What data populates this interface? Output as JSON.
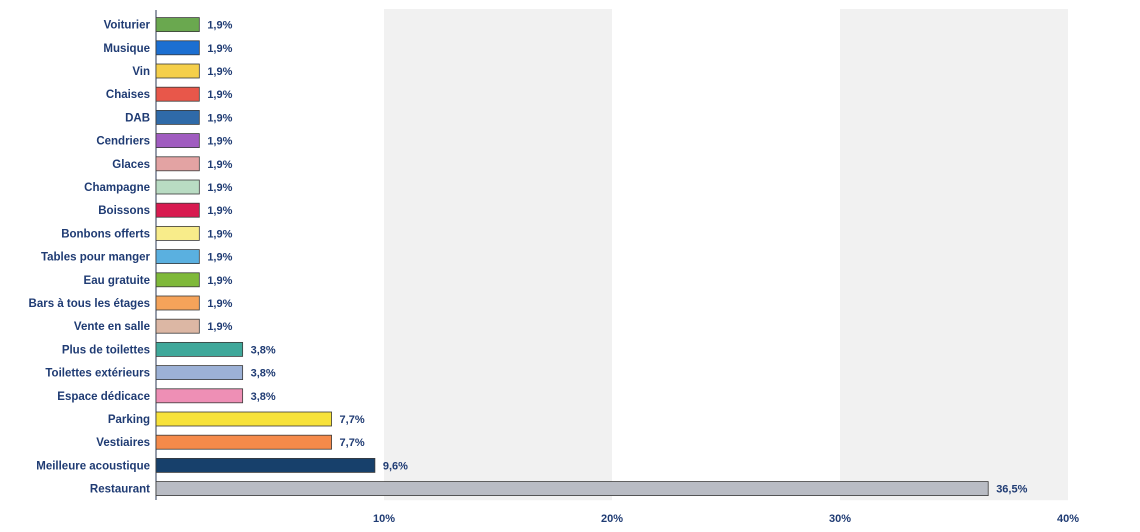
{
  "chart_data": {
    "type": "bar",
    "orientation": "horizontal",
    "categories": [
      "Voiturier",
      "Musique",
      "Vin",
      "Chaises",
      "DAB",
      "Cendriers",
      "Glaces",
      "Champagne",
      "Boissons",
      "Bonbons offerts",
      "Tables pour manger",
      "Eau gratuite",
      "Bars à tous les étages",
      "Vente en salle",
      "Plus de toilettes",
      "Toilettes extérieurs",
      "Espace dédicace",
      "Parking",
      "Vestiaires",
      "Meilleure acoustique",
      "Restaurant"
    ],
    "values": [
      1.9,
      1.9,
      1.9,
      1.9,
      1.9,
      1.9,
      1.9,
      1.9,
      1.9,
      1.9,
      1.9,
      1.9,
      1.9,
      1.9,
      3.8,
      3.8,
      3.8,
      7.7,
      7.7,
      9.6,
      36.5
    ],
    "value_labels": [
      "1,9%",
      "1,9%",
      "1,9%",
      "1,9%",
      "1,9%",
      "1,9%",
      "1,9%",
      "1,9%",
      "1,9%",
      "1,9%",
      "1,9%",
      "1,9%",
      "1,9%",
      "1,9%",
      "3,8%",
      "3,8%",
      "3,8%",
      "7,7%",
      "7,7%",
      "9,6%",
      "36,5%"
    ],
    "colors": [
      "#6aa84f",
      "#1c6fd1",
      "#f5cf4a",
      "#e8574a",
      "#2f6aa8",
      "#a05cc0",
      "#e3a3a3",
      "#b9dcc3",
      "#d81b50",
      "#f8ec8a",
      "#5ab0e0",
      "#7fb93a",
      "#f5a35a",
      "#dcb7a4",
      "#3fa89a",
      "#9cb1d6",
      "#ee8fb5",
      "#f7e23a",
      "#f58a4a",
      "#17406b",
      "#b9bcc4"
    ],
    "xticks": [
      "10%",
      "20%",
      "30%",
      "40%"
    ],
    "xtick_values": [
      10,
      20,
      30,
      40
    ],
    "xlim": [
      0,
      40
    ],
    "grid": "alternating vertical bands",
    "title": "",
    "xlabel": "",
    "ylabel": ""
  }
}
